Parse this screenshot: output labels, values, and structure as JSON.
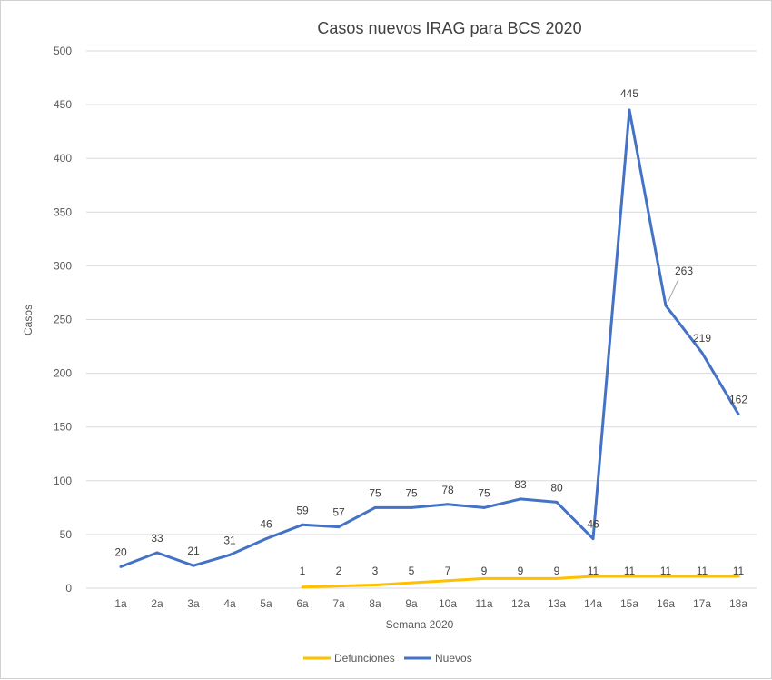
{
  "chart_data": {
    "type": "line",
    "title": "Casos nuevos IRAG para BCS 2020",
    "xlabel": "Semana 2020",
    "ylabel": "Casos",
    "ylim": [
      0,
      500
    ],
    "yticks": [
      0,
      50,
      100,
      150,
      200,
      250,
      300,
      350,
      400,
      450,
      500
    ],
    "grid": true,
    "legend_position": "bottom",
    "categories": [
      "1a",
      "2a",
      "3a",
      "4a",
      "5a",
      "6a",
      "7a",
      "8a",
      "9a",
      "10a",
      "11a",
      "12a",
      "13a",
      "14a",
      "15a",
      "16a",
      "17a",
      "18a"
    ],
    "series": [
      {
        "name": "Defunciones",
        "color": "#FFC000",
        "values": [
          null,
          null,
          null,
          null,
          null,
          1,
          2,
          3,
          5,
          7,
          9,
          9,
          9,
          11,
          11,
          11,
          11,
          11
        ]
      },
      {
        "name": "Nuevos",
        "color": "#4472C4",
        "values": [
          20,
          33,
          21,
          31,
          46,
          59,
          57,
          75,
          75,
          78,
          75,
          83,
          80,
          46,
          445,
          263,
          219,
          162
        ]
      }
    ]
  }
}
